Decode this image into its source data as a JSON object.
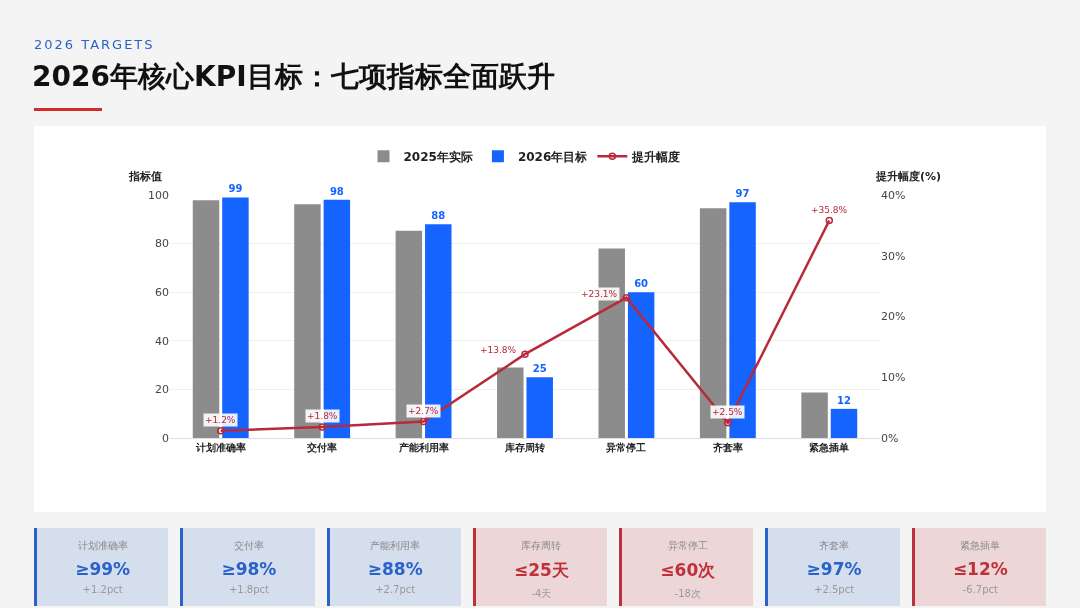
{
  "chart_data": [
    {
      "type": "bar",
      "subtitle": "2026 TARGETS",
      "title": "2026年核心KPI目标：七项指标全面跃升",
      "ylabel": "指标值",
      "y2label": "提升幅度(%)",
      "categories": [
        "计划准确率",
        "交付率",
        "产能利用率",
        "库存周转",
        "异常停工",
        "齐套率",
        "紧急插单"
      ],
      "series": [
        {
          "name": "2025年实际",
          "color": "#8c8c8c",
          "values": [
            97.8,
            96.2,
            85.3,
            29,
            78,
            94.5,
            18.7
          ]
        },
        {
          "name": "2026年目标",
          "color": "#1664ff",
          "values": [
            99,
            98,
            88,
            25,
            60,
            97,
            12
          ],
          "value_labels": [
            "99",
            "98",
            "88",
            "25",
            "60",
            "97",
            "12"
          ]
        },
        {
          "name": "提升幅度",
          "type": "line",
          "axis": "y2",
          "color": "#b8293a",
          "marker": "circle",
          "values": [
            1.2,
            1.8,
            2.7,
            13.8,
            23.1,
            2.5,
            35.8
          ],
          "value_labels": [
            "+1.2%",
            "+1.8%",
            "+2.7%",
            "+13.8%",
            "+23.1%",
            "+2.5%",
            "+35.8%"
          ]
        }
      ],
      "ylim": [
        0,
        100
      ],
      "yticks": [
        0,
        20,
        40,
        60,
        80,
        100
      ],
      "y2lim": [
        0,
        40
      ],
      "y2ticks": [
        {
          "value": 0,
          "label": "0%"
        },
        {
          "value": 10,
          "label": "10%"
        },
        {
          "value": 20,
          "label": "20%"
        },
        {
          "value": 30,
          "label": "30%"
        },
        {
          "value": 40,
          "label": "40%"
        }
      ],
      "grid": "y",
      "legend": "top"
    },
    {
      "type": "other",
      "categories": [
        "计划准确率",
        "交付率",
        "产能利用率",
        "库存周转",
        "异常停工",
        "齐套率",
        "紧急插单"
      ],
      "value_labels": [
        "≥99%",
        "≥98%",
        "≥88%",
        "≤25天",
        "≤60次",
        "≥97%",
        "≤12%"
      ],
      "annotations": [
        "+1.2pct",
        "+1.8pct",
        "+2.7pct",
        "-4天",
        "-18次",
        "+2.5pct",
        "-6.7pct"
      ],
      "colors": [
        "#2a62c9",
        "#2a62c9",
        "#2a62c9",
        "#c0303a",
        "#c0303a",
        "#2a62c9",
        "#c0303a"
      ]
    }
  ]
}
